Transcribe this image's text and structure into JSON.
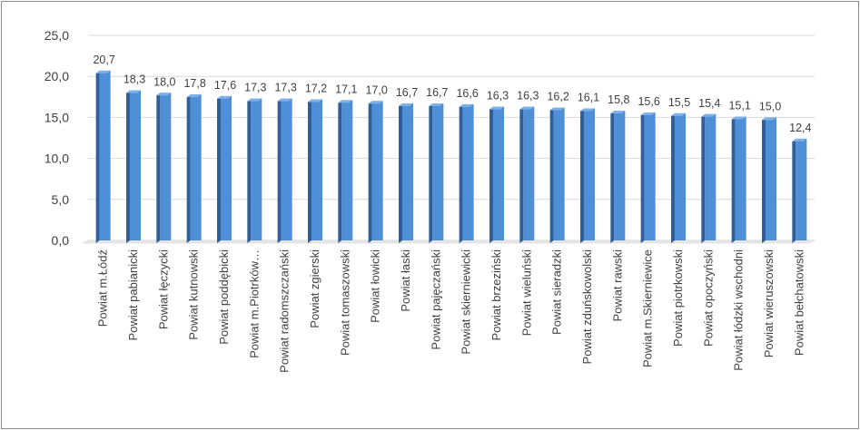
{
  "chart_data": {
    "type": "bar",
    "style": "3d-column",
    "title": "",
    "xlabel": "",
    "ylabel": "",
    "ylim": [
      0,
      25
    ],
    "yticks": [
      "0,0",
      "5,0",
      "10,0",
      "15,0",
      "20,0",
      "25,0"
    ],
    "grid": true,
    "legend": "none",
    "bar_color": "#4f8fd8",
    "categories": [
      "Powiat m.Łódź",
      "Powiat pabianicki",
      "Powiat łęczycki",
      "Powiat kutnowski",
      "Powiat poddębicki",
      "Powiat m.Piotrków…",
      "Powiat radomszczański",
      "Powiat zgierski",
      "Powiat tomaszowski",
      "Powiat łowicki",
      "Powiat łaski",
      "Powiat pajęczański",
      "Powiat skierniewicki",
      "Powiat brzeziński",
      "Powiat wieluński",
      "Powiat sieradzki",
      "Powiat zduńskowolski",
      "Powiat rawski",
      "Powiat m.Skierniewice",
      "Powiat piotrkowski",
      "Powiat opoczyński",
      "Powiat łódzki wschodni",
      "Powiat wieruszowski",
      "Powiat bełchatowski"
    ],
    "values": [
      20.7,
      18.3,
      18.0,
      17.8,
      17.6,
      17.3,
      17.3,
      17.2,
      17.1,
      17.0,
      16.7,
      16.7,
      16.6,
      16.3,
      16.3,
      16.2,
      16.1,
      15.8,
      15.6,
      15.5,
      15.4,
      15.1,
      15.0,
      12.4
    ],
    "data_labels": [
      "20,7",
      "18,3",
      "18,0",
      "17,8",
      "17,6",
      "17,3",
      "17,3",
      "17,2",
      "17,1",
      "17,0",
      "16,7",
      "16,7",
      "16,6",
      "16,3",
      "16,3",
      "16,2",
      "16,1",
      "15,8",
      "15,6",
      "15,5",
      "15,4",
      "15,1",
      "15,0",
      "12,4"
    ]
  }
}
